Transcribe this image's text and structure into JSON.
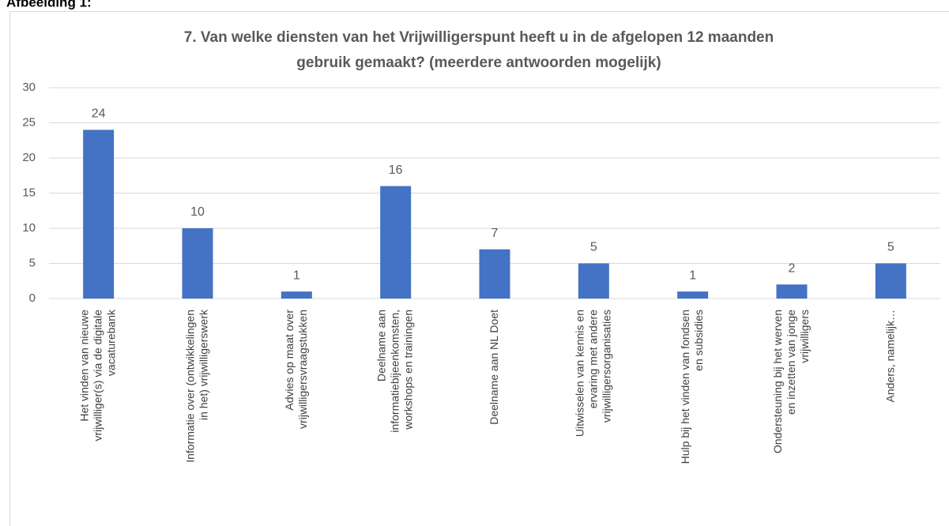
{
  "heading": "Afbeelding 1:",
  "chart_data": {
    "type": "bar",
    "title": "7. Van welke diensten van het Vrijwilligerspunt heeft u in de afgelopen 12 maanden\ngebruik gemaakt? (meerdere antwoorden mogelijk)",
    "categories": [
      "Het vinden van nieuwe\nvrijwilliger(s) via de digitale\nvacaturebank",
      "Informatie over (ontwikkelingen\nin het) vrijwilligerswerk",
      "Advies op maat over\nvrijwilligersvraagstukken",
      "Deelname aan\ninformatiebijeenkomsten,\nworkshops en trainingen",
      "Deelname aan NL Doet",
      "Uitwisselen van kennis en\nervaring met andere\nvrijwilligersorganisaties",
      "Hulp bij het vinden van fondsen\nen subsidies",
      "Ondersteuning bij het werven\nen inzetten van jonge\nvrijwilligers",
      "Anders, namelijk…"
    ],
    "values": [
      24,
      10,
      1,
      16,
      7,
      5,
      1,
      2,
      5
    ],
    "color": "#4472c4",
    "ylim": [
      0,
      30
    ],
    "yticks": [
      0,
      5,
      10,
      15,
      20,
      25,
      30
    ],
    "grid": true
  }
}
